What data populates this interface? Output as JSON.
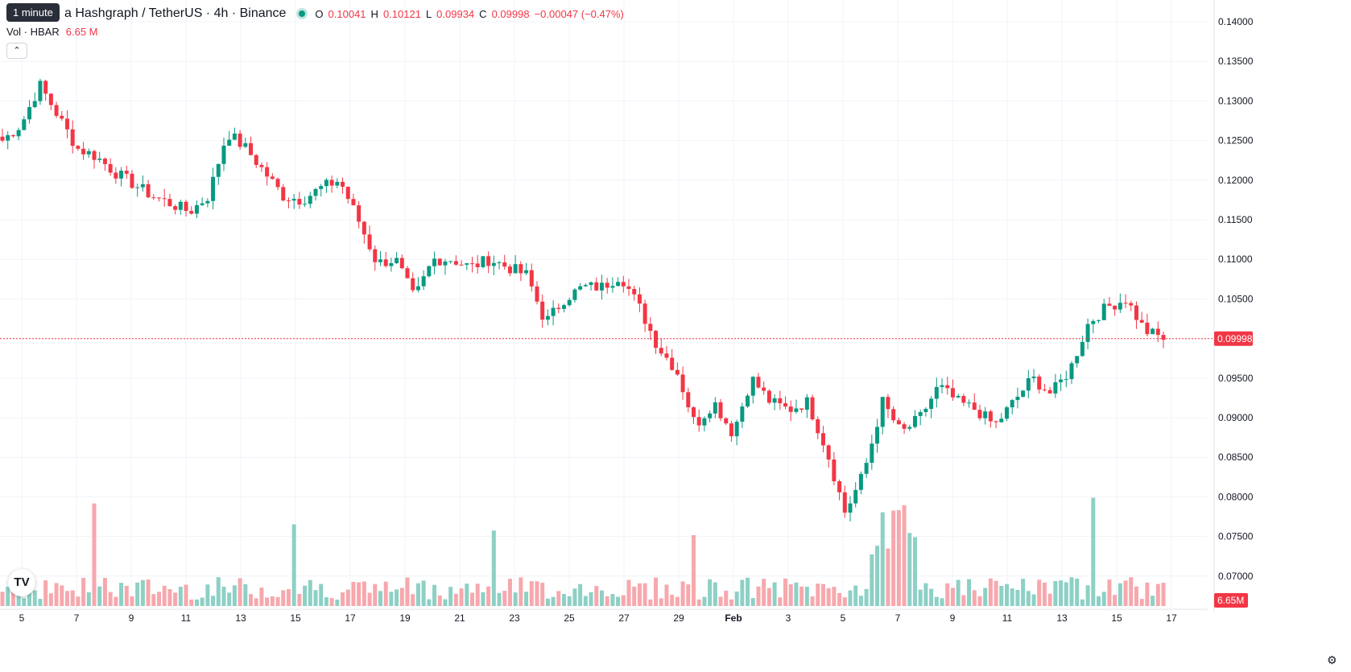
{
  "header": {
    "tooltip": "1 minute",
    "symbol_title": "a Hashgraph / TetherUS · 4h · Binance",
    "ohlc": [
      {
        "key": "O",
        "value": "0.10041"
      },
      {
        "key": "H",
        "value": "0.10121"
      },
      {
        "key": "L",
        "value": "0.09934"
      },
      {
        "key": "C",
        "value": "0.09998"
      }
    ],
    "change": "−0.00047 (−0.47%)"
  },
  "volume_legend": {
    "label": "Vol · HBAR",
    "value": "6.65 M"
  },
  "colors": {
    "up": "#089981",
    "down": "#f23645",
    "up_vol": "#8dd0c5",
    "down_vol": "#f7a8ad",
    "grid": "#f0f3fa",
    "text": "#131722"
  },
  "icons": [
    "chevron-up-icon",
    "tradingview-logo-icon",
    "gear-icon"
  ],
  "chart_data": {
    "type": "candlestick",
    "exchange": "Binance",
    "interval": "4h",
    "x_tick_labels": [
      "5",
      "7",
      "9",
      "11",
      "13",
      "15",
      "17",
      "19",
      "21",
      "23",
      "25",
      "27",
      "29",
      "Feb",
      "3",
      "5",
      "7",
      "9",
      "11",
      "13",
      "15",
      "17"
    ],
    "y_tick_labels": [
      "0.14000",
      "0.13500",
      "0.13000",
      "0.12500",
      "0.12000",
      "0.11500",
      "0.11000",
      "0.10500",
      "0.10000",
      "0.09500",
      "0.09000",
      "0.08500",
      "0.08000",
      "0.07500",
      "0.07000"
    ],
    "ylim": [
      0.0665,
      0.1415
    ],
    "last_price": "0.09998",
    "last_volume": "6.65M",
    "close_path": [
      [
        "5",
        0.125
      ],
      [
        "6",
        0.127
      ],
      [
        "6.5",
        0.132
      ],
      [
        "7",
        0.128
      ],
      [
        "7.5",
        0.124
      ],
      [
        "8",
        0.123
      ],
      [
        "9",
        0.121
      ],
      [
        "10",
        0.1195
      ],
      [
        "11",
        0.118
      ],
      [
        "12",
        0.117
      ],
      [
        "13",
        0.116
      ],
      [
        "13.5",
        0.118
      ],
      [
        "14",
        0.126
      ],
      [
        "14.5",
        0.124
      ],
      [
        "15",
        0.121
      ],
      [
        "16",
        0.118
      ],
      [
        "17",
        0.1175
      ],
      [
        "17.5",
        0.119
      ],
      [
        "18",
        0.12
      ],
      [
        "19",
        0.115
      ],
      [
        "19.5",
        0.1095
      ],
      [
        "20",
        0.11
      ],
      [
        "21",
        0.105
      ],
      [
        "21.5",
        0.11
      ],
      [
        "22",
        0.11
      ],
      [
        "23",
        0.109
      ],
      [
        "23.5",
        0.11
      ],
      [
        "24",
        0.109
      ],
      [
        "25",
        0.108
      ],
      [
        "26",
        0.102
      ],
      [
        "26.5",
        0.105
      ],
      [
        "27",
        0.1065
      ],
      [
        "28",
        0.1065
      ],
      [
        "29",
        0.108
      ],
      [
        "30",
        0.104
      ],
      [
        "31",
        0.099
      ],
      [
        "Feb 1",
        0.096
      ],
      [
        "1.5",
        0.089
      ],
      [
        "2",
        0.092
      ],
      [
        "2.5",
        0.088
      ],
      [
        "3",
        0.095
      ],
      [
        "3.5",
        0.092
      ],
      [
        "4",
        0.091
      ],
      [
        "5",
        0.092
      ],
      [
        "5.5",
        0.086
      ],
      [
        "6",
        0.078
      ],
      [
        "6.5",
        0.083
      ],
      [
        "7",
        0.092
      ],
      [
        "8",
        0.088
      ],
      [
        "8.5",
        0.09
      ],
      [
        "9",
        0.094
      ],
      [
        "10",
        0.092
      ],
      [
        "11",
        0.091
      ],
      [
        "12",
        0.089
      ],
      [
        "13",
        0.092
      ],
      [
        "13.5",
        0.095
      ],
      [
        "14",
        0.093
      ],
      [
        "14.5",
        0.096
      ],
      [
        "15",
        0.102
      ],
      [
        "15.5",
        0.104
      ],
      [
        "16",
        0.105
      ],
      [
        "16.5",
        0.101
      ],
      [
        "17",
        0.1
      ]
    ],
    "volume_legend": "Vol · HBAR 6.65 M"
  }
}
